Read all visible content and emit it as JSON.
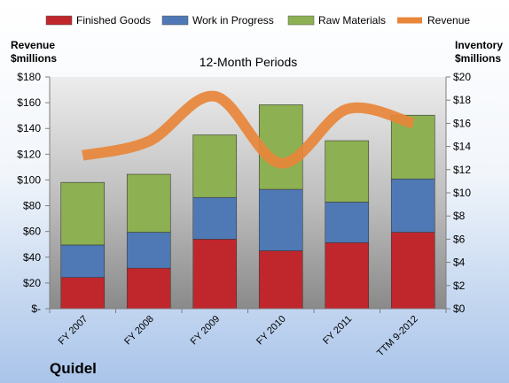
{
  "company": "Quidel",
  "chart_data": {
    "type": "bar",
    "stacked": true,
    "title": "12-Month Periods",
    "categories": [
      "FY 2007",
      "FY 2008",
      "FY 2009",
      "FY 2010",
      "FY 2011",
      "TTM 9-2012"
    ],
    "series": [
      {
        "name": "Finished Goods",
        "axis": "right",
        "color": "#c0272d",
        "values": [
          2.7,
          3.5,
          6.0,
          5.0,
          5.7,
          6.6
        ]
      },
      {
        "name": "Work in Progress",
        "axis": "right",
        "color": "#4f79b5",
        "values": [
          2.8,
          3.1,
          3.6,
          5.3,
          3.5,
          4.6
        ]
      },
      {
        "name": "Raw Materials",
        "axis": "right",
        "color": "#8db052",
        "values": [
          5.4,
          5.0,
          5.4,
          7.3,
          5.3,
          5.5
        ]
      },
      {
        "name": "Revenue",
        "type": "line",
        "axis": "left",
        "color": "#e8863a",
        "values": [
          119,
          130,
          165,
          113,
          155,
          144
        ]
      }
    ],
    "left_axis": {
      "title_lines": [
        "Revenue",
        "$millions"
      ],
      "ylim": [
        0,
        180
      ],
      "ticks": [
        0,
        20,
        40,
        60,
        80,
        100,
        120,
        140,
        160,
        180
      ],
      "tick_labels": [
        "$-",
        "$20",
        "$40",
        "$60",
        "$80",
        "$100",
        "$120",
        "$140",
        "$160",
        "$180"
      ]
    },
    "right_axis": {
      "title_lines": [
        "Inventory",
        "$millions"
      ],
      "ylim": [
        0,
        20
      ],
      "ticks": [
        0,
        2,
        4,
        6,
        8,
        10,
        12,
        14,
        16,
        18,
        20
      ],
      "tick_labels": [
        "$0",
        "$2",
        "$4",
        "$6",
        "$8",
        "$10",
        "$12",
        "$14",
        "$16",
        "$18",
        "$20"
      ]
    },
    "legend_position": "top",
    "grid": false
  }
}
